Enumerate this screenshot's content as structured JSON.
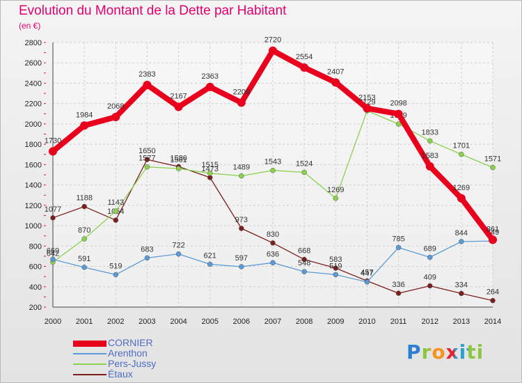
{
  "chart_data": {
    "type": "line",
    "title": "Evolution du Montant de la Dette par Habitant",
    "unit": "(en €)",
    "x": [
      "2000",
      "2001",
      "2002",
      "2003",
      "2004",
      "2005",
      "2006",
      "2007",
      "2008",
      "2009",
      "2010",
      "2011",
      "2012",
      "2013",
      "2014"
    ],
    "ylim": [
      200,
      2800
    ],
    "yticks": [
      200,
      400,
      600,
      800,
      1000,
      1200,
      1400,
      1600,
      1800,
      2000,
      2200,
      2400,
      2600,
      2800
    ],
    "grid": true,
    "legend_position": "bottom-left",
    "series": [
      {
        "name": "CORNIER",
        "color": "#e8001c",
        "values": [
          1730,
          1984,
          2068,
          2383,
          2167,
          2363,
          2209,
          2720,
          2554,
          2407,
          2153,
          2098,
          1583,
          1269,
          861
        ]
      },
      {
        "name": "Arenthon",
        "color": "#5b9bd5",
        "values": [
          669,
          591,
          519,
          683,
          722,
          621,
          597,
          636,
          548,
          519,
          447,
          785,
          689,
          844,
          849
        ]
      },
      {
        "name": "Pers-Jussy",
        "color": "#8bd14e",
        "values": [
          642,
          870,
          1143,
          1577,
          1561,
          1515,
          1489,
          1543,
          1524,
          1269,
          2129,
          1999,
          1833,
          1701,
          1571
        ]
      },
      {
        "name": "Étaux",
        "color": "#7b1f1f",
        "values": [
          1077,
          1188,
          1054,
          1650,
          1580,
          1473,
          973,
          830,
          668,
          583,
          457,
          336,
          409,
          334,
          264
        ]
      }
    ]
  },
  "brand": {
    "name": "Proxiti"
  }
}
